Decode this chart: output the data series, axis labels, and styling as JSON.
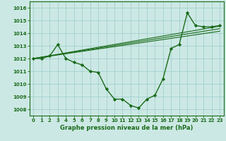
{
  "line1": {
    "x": [
      0,
      1,
      2,
      3,
      4,
      5,
      6,
      7,
      8,
      9,
      10,
      11,
      12,
      13,
      14,
      15,
      16,
      17,
      18,
      19,
      20,
      21,
      22,
      23
    ],
    "y": [
      1012.0,
      1012.0,
      1012.2,
      1013.1,
      1012.0,
      1011.7,
      1011.5,
      1011.0,
      1010.9,
      1009.6,
      1008.8,
      1008.8,
      1008.3,
      1008.1,
      1008.8,
      1009.1,
      1010.4,
      1012.8,
      1013.1,
      1015.6,
      1014.6,
      1014.5,
      1014.5,
      1014.6
    ],
    "color": "#1a6b1a",
    "linewidth": 1.0,
    "marker": "D",
    "markersize": 2.2
  },
  "envelope1": {
    "x": [
      0,
      23
    ],
    "y": [
      1012.0,
      1014.55
    ],
    "color": "#1a6b1a",
    "linewidth": 0.8
  },
  "envelope2": {
    "x": [
      0,
      23
    ],
    "y": [
      1012.0,
      1014.35
    ],
    "color": "#1a6b1a",
    "linewidth": 0.8
  },
  "envelope3": {
    "x": [
      0,
      23
    ],
    "y": [
      1012.0,
      1014.15
    ],
    "color": "#1a6b1a",
    "linewidth": 0.8
  },
  "bgcolor": "#cce8e4",
  "grid_color": "#99cccc",
  "axis_color": "#1a6b1a",
  "ylim": [
    1007.5,
    1016.5
  ],
  "xlim": [
    -0.5,
    23.5
  ],
  "yticks": [
    1008,
    1009,
    1010,
    1011,
    1012,
    1013,
    1014,
    1015,
    1016
  ],
  "xticks": [
    0,
    1,
    2,
    3,
    4,
    5,
    6,
    7,
    8,
    9,
    10,
    11,
    12,
    13,
    14,
    15,
    16,
    17,
    18,
    19,
    20,
    21,
    22,
    23
  ],
  "xlabel": "Graphe pression niveau de la mer (hPa)",
  "xlabel_fontsize": 6.0,
  "tick_fontsize": 5.0
}
